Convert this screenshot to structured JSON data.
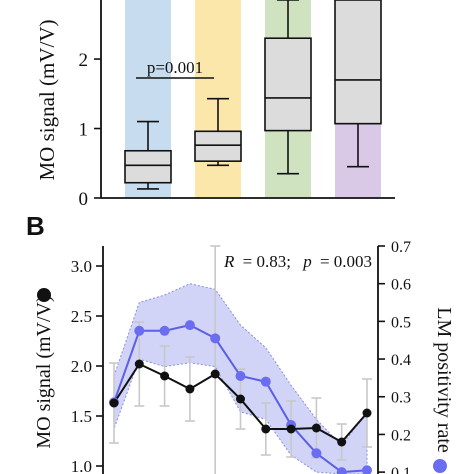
{
  "chart_data": [
    {
      "type": "box",
      "ylabel": "MO signal (mV/V)",
      "ylim": [
        0,
        2.85
      ],
      "yticks": [
        "0",
        "1",
        "2"
      ],
      "grid": false,
      "annotation": "p=0.001",
      "groups": [
        {
          "band_color": "#c8dcf0",
          "whisker_low": 0.13,
          "q1": 0.22,
          "median": 0.47,
          "q3": 0.68,
          "whisker_high": 1.1
        },
        {
          "band_color": "#fbe7a9",
          "whisker_low": 0.47,
          "q1": 0.53,
          "median": 0.76,
          "q3": 0.96,
          "whisker_high": 1.43
        },
        {
          "band_color": "#cfe3c0",
          "whisker_low": 0.35,
          "q1": 0.97,
          "median": 1.44,
          "q3": 2.3,
          "whisker_high": 2.85
        },
        {
          "band_color": "#d9c8e6",
          "whisker_low": 0.45,
          "q1": 1.07,
          "median": 1.7,
          "q3": 2.85,
          "whisker_high": 2.85
        }
      ]
    },
    {
      "type": "line",
      "panel_label": "B",
      "ylabel": "MO signal (mV/V)",
      "y2label": "LM positivity rate",
      "ylim": [
        0.92,
        3.2
      ],
      "yticks": [
        "1.0",
        "1.5",
        "2.0",
        "2.5",
        "3.0"
      ],
      "y2lim": [
        0.095,
        0.7
      ],
      "y2ticks": [
        "0.1",
        "0.2",
        "0.3",
        "0.4",
        "0.5",
        "0.6",
        "0.7"
      ],
      "annotation_r": "R",
      "annotation_r_value": "= 0.83;",
      "annotation_p": "p",
      "annotation_p_value": "= 0.003",
      "grid": false,
      "series": [
        {
          "color": "#111111",
          "marker_color": "#111111",
          "axis": "left",
          "values": [
            1.63,
            2.02,
            1.9,
            1.77,
            1.92,
            1.67,
            1.37,
            1.37,
            1.38,
            1.24,
            1.53
          ],
          "err": [
            0.4,
            0.42,
            0.3,
            0.32,
            1.28,
            0.3,
            0.26,
            0.28,
            0.3,
            0.18,
            0.34
          ]
        },
        {
          "color": "#5b5ee6",
          "marker_color": "#6b6df0",
          "band_color": "#c9ccf6",
          "axis": "right",
          "values": [
            0.285,
            0.475,
            0.475,
            0.49,
            0.455,
            0.355,
            0.34,
            0.225,
            0.15,
            0.1,
            0.105
          ],
          "band_low": [
            0.215,
            0.4,
            0.38,
            0.39,
            0.38,
            0.26,
            0.24,
            0.145,
            0.1,
            0.095,
            0.095
          ],
          "band_high": [
            0.355,
            0.55,
            0.57,
            0.6,
            0.585,
            0.49,
            0.43,
            0.33,
            0.24,
            0.17,
            0.26
          ]
        }
      ]
    }
  ]
}
